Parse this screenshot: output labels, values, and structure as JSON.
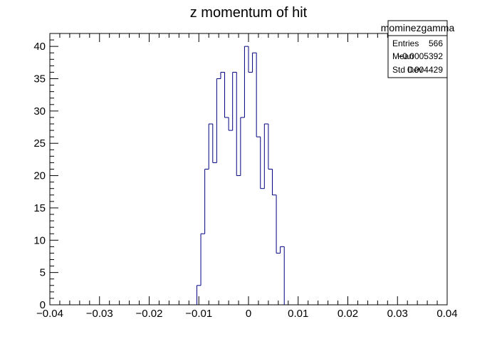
{
  "chart_data": {
    "type": "histogram",
    "title": "z momentum of hit",
    "xlabel": "",
    "ylabel": "",
    "xlim": [
      -0.04,
      0.04
    ],
    "ylim": [
      0,
      42
    ],
    "x_ticks": [
      -0.04,
      -0.03,
      -0.02,
      -0.01,
      0,
      0.01,
      0.02,
      0.03,
      0.04
    ],
    "x_tick_labels": [
      "−0.04",
      "−0.03",
      "−0.02",
      "−0.01",
      "0",
      "0.01",
      "0.02",
      "0.03",
      "0.04"
    ],
    "y_ticks": [
      0,
      5,
      10,
      15,
      20,
      25,
      30,
      35,
      40
    ],
    "y_tick_labels": [
      "0",
      "5",
      "10",
      "15",
      "20",
      "25",
      "30",
      "35",
      "40"
    ],
    "bin_width": 0.0008,
    "bin_edges_start": -0.0104,
    "counts": [
      3,
      11,
      21,
      28,
      22,
      35,
      36,
      29,
      27,
      36,
      20,
      29,
      40,
      36,
      39,
      26,
      18,
      28,
      21,
      17,
      8,
      9
    ],
    "line_color": "#00007f",
    "stats": {
      "name": "mominezgamma",
      "rows": [
        {
          "label": "Entries",
          "value": "566"
        },
        {
          "label": "Mean",
          "value": "−0.0005392"
        },
        {
          "label": "Std Dev",
          "value": "0.004429"
        }
      ]
    }
  }
}
